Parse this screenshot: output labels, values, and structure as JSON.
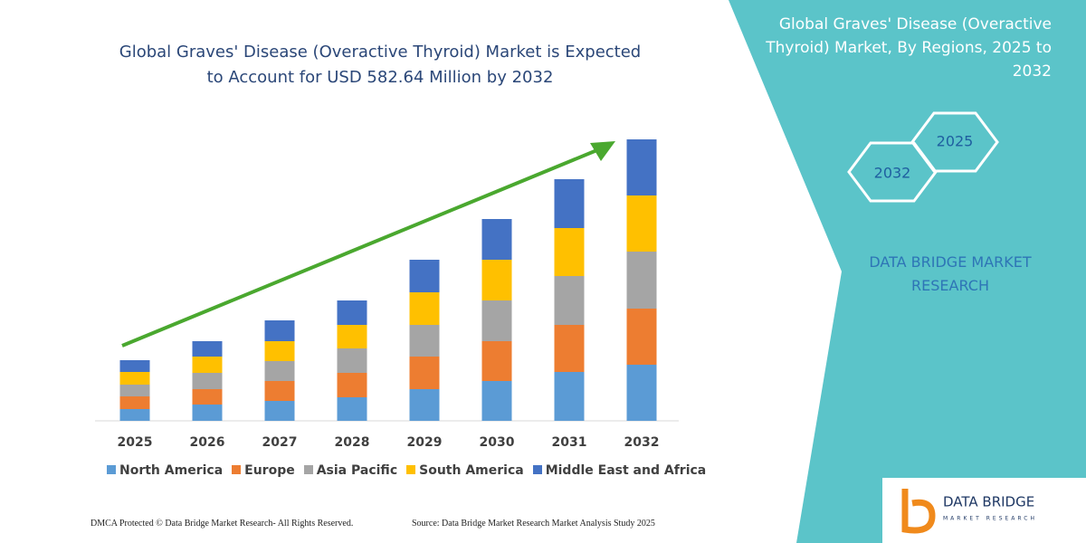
{
  "chart_data": {
    "type": "bar",
    "stacked": true,
    "title": "Global Graves' Disease (Overactive Thyroid) Market is Expected to Account for USD 582.64 Million by 2032",
    "categories": [
      "2025",
      "2026",
      "2027",
      "2028",
      "2029",
      "2030",
      "2031",
      "2032"
    ],
    "series": [
      {
        "name": "North America",
        "color": "#5b9bd5",
        "values": [
          13,
          18,
          22,
          26,
          35,
          44,
          54,
          62
        ]
      },
      {
        "name": "Europe",
        "color": "#ed7d31",
        "values": [
          14,
          17,
          22,
          27,
          36,
          44,
          52,
          62
        ]
      },
      {
        "name": "Asia Pacific",
        "color": "#a5a5a5",
        "values": [
          13,
          18,
          22,
          27,
          35,
          45,
          54,
          63
        ]
      },
      {
        "name": "South America",
        "color": "#ffc000",
        "values": [
          14,
          18,
          22,
          26,
          36,
          45,
          53,
          62
        ]
      },
      {
        "name": "Middle East and Africa",
        "color": "#4472c4",
        "values": [
          13,
          17,
          23,
          27,
          36,
          45,
          54,
          62
        ]
      }
    ]
  },
  "panel": {
    "title": "Global Graves' Disease (Overactive Thyroid) Market, By Regions, 2025 to 2032",
    "hex_labels": [
      "2025",
      "2032"
    ],
    "brand": "DATA BRIDGE MARKET RESEARCH"
  },
  "logo": {
    "name": "DATA BRIDGE",
    "tagline": "MARKET RESEARCH"
  },
  "footer": {
    "left": "DMCA Protected © Data Bridge Market Research-  All Rights Reserved.",
    "right": "Source: Data Bridge Market Research  Market Analysis Study 2025"
  }
}
